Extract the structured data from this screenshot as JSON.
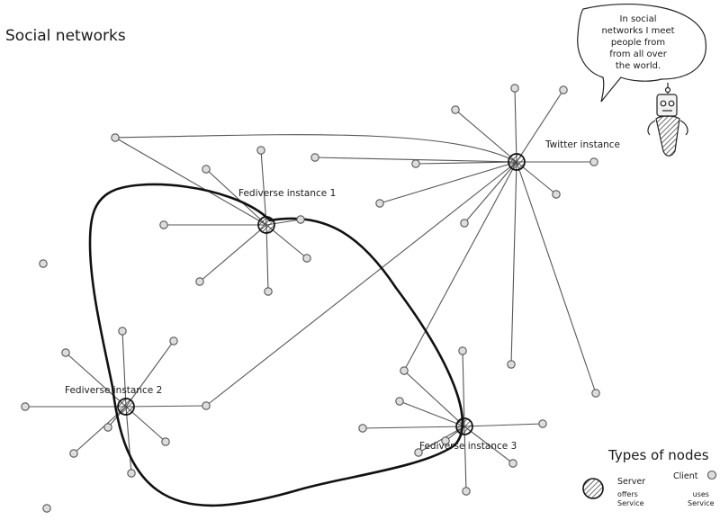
{
  "title": "Social networks",
  "speech_bubble": {
    "line1": "In social",
    "line2": "networks I meet",
    "line3": "people from",
    "line4": "from all over",
    "line5": "the world."
  },
  "servers": {
    "twitter": "Twitter instance",
    "fed1": "Fediverse instance 1",
    "fed2": "Fediverse instance 2",
    "fed3": "Fediverse instance 3"
  },
  "legend": {
    "title": "Types of nodes",
    "server_label": "Server",
    "server_desc_1": "offers",
    "server_desc_2": "Service",
    "client_label": "Client",
    "client_desc_1": "uses",
    "client_desc_2": "Service"
  }
}
